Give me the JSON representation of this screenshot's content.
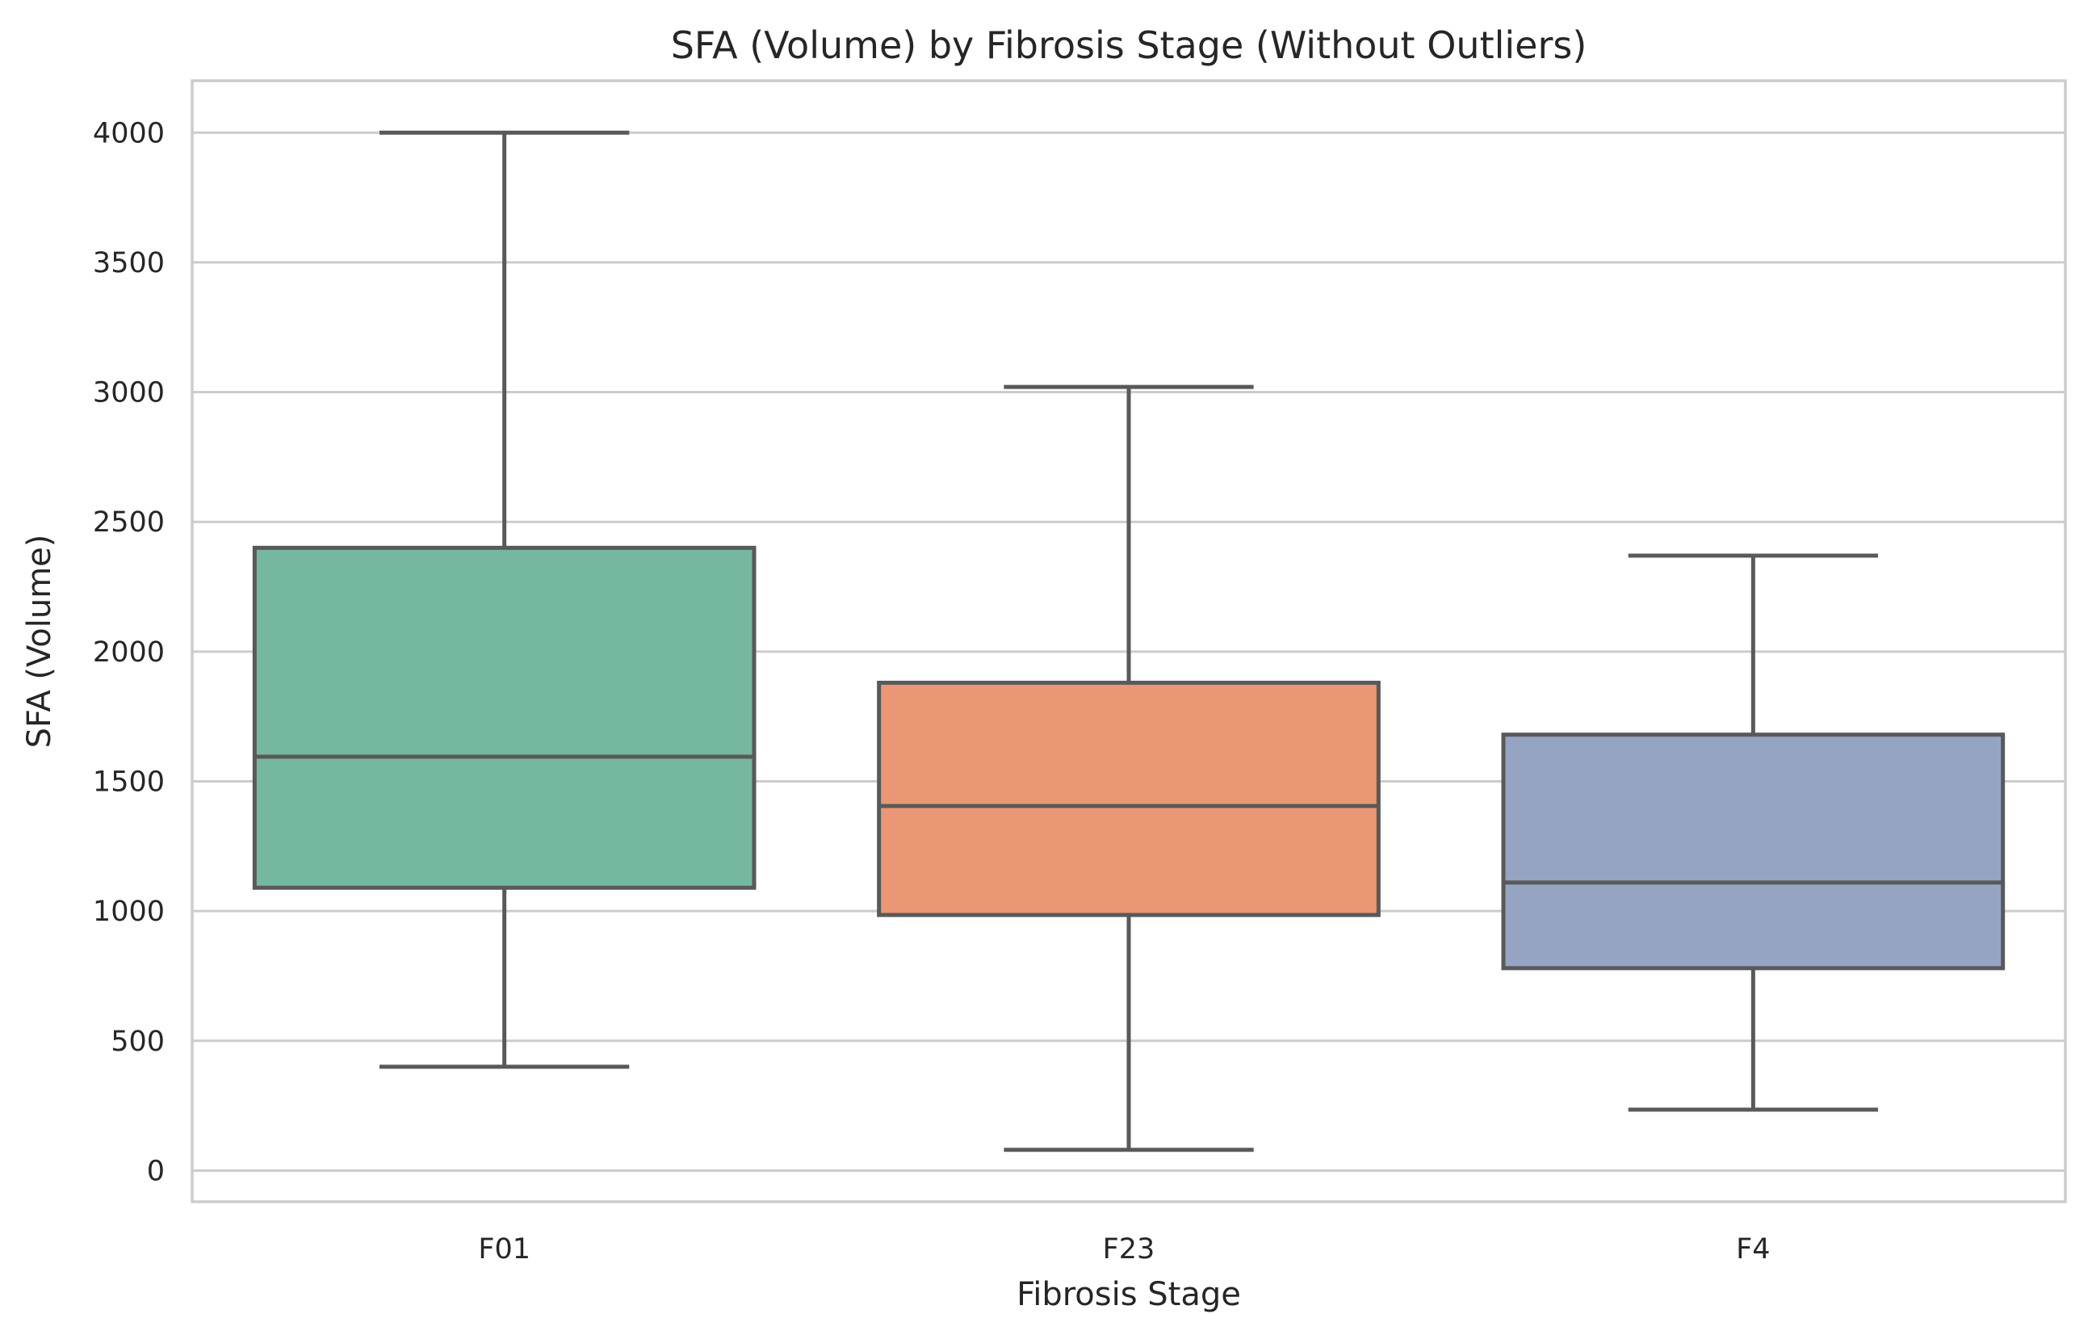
{
  "chart_data": {
    "type": "box",
    "title": "SFA (Volume) by Fibrosis Stage (Without Outliers)",
    "xlabel": "Fibrosis Stage",
    "ylabel": "SFA (Volume)",
    "ylim": [
      -120,
      4200
    ],
    "yticks": [
      0,
      500,
      1000,
      1500,
      2000,
      2500,
      3000,
      3500,
      4000
    ],
    "grid": true,
    "categories": [
      "F01",
      "F23",
      "F4"
    ],
    "boxes": [
      {
        "category": "F01",
        "whisker_low": 400,
        "q1": 1090,
        "median": 1595,
        "q3": 2400,
        "whisker_high": 4000,
        "color": "#76b7a0"
      },
      {
        "category": "F23",
        "whisker_low": 80,
        "q1": 985,
        "median": 1405,
        "q3": 1880,
        "whisker_high": 3020,
        "color": "#ea9775"
      },
      {
        "category": "F4",
        "whisker_low": 235,
        "q1": 780,
        "median": 1110,
        "q3": 1680,
        "whisker_high": 2370,
        "color": "#96a4c4"
      }
    ]
  }
}
